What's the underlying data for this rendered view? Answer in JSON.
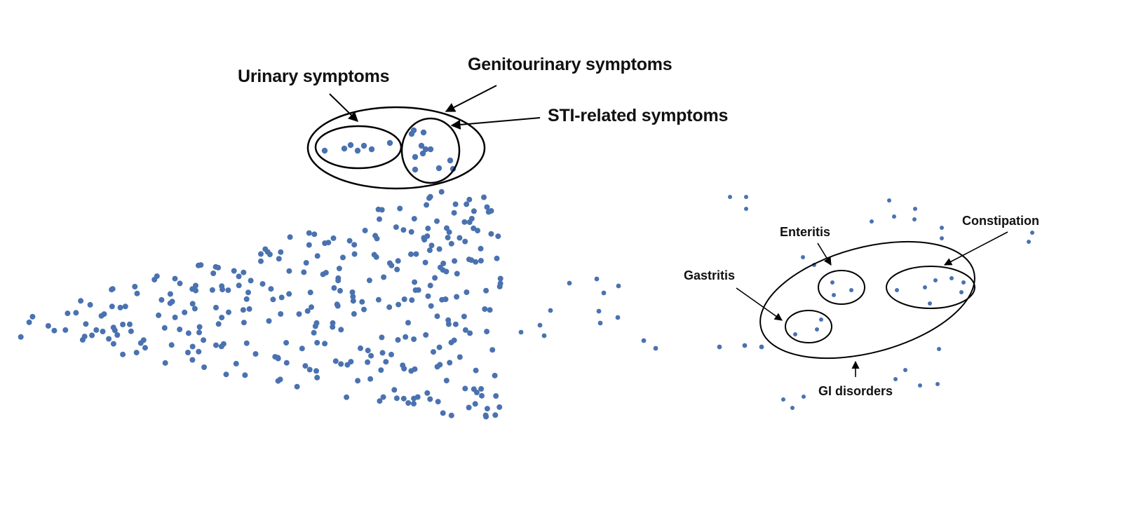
{
  "labels": {
    "urinary": "Urinary symptoms",
    "genitourinary": "Genitourinary symptoms",
    "sti": "STI-related symptoms",
    "enteritis": "Enteritis",
    "constipation": "Constipation",
    "gastritis": "Gastritis",
    "gi_disorders": "GI disorders"
  },
  "colors": {
    "point": "#4a72b0",
    "outline": "#000000",
    "text": "#111111"
  }
}
